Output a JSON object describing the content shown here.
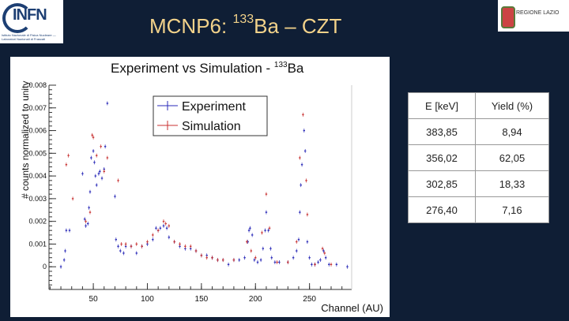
{
  "header": {
    "title_prefix": "MCNP6: ",
    "title_sup": "133",
    "title_suffix": "Ba – CZT",
    "logo_left": "INFN",
    "logo_left_sub": "Istituto Nazionale di Fisica Nucleare — Laboratori Nazionali di Frascati",
    "logo_right": "REGIONE LAZIO"
  },
  "colors": {
    "background": "#0f1e35",
    "title": "#f2d28a",
    "experiment": "#2a2ab8",
    "simulation": "#c83232"
  },
  "table": {
    "headers": [
      "E [keV]",
      "Yield (%)"
    ],
    "rows": [
      [
        "383,85",
        "8,94"
      ],
      [
        "356,02",
        "62,05"
      ],
      [
        "302,85",
        "18,33"
      ],
      [
        "276,40",
        "7,16"
      ]
    ]
  },
  "chart_data": {
    "type": "scatter",
    "title": "Experiment vs Simulation - ",
    "title_sup": "133",
    "title_suffix": "Ba",
    "xlabel": "Channel (AU)",
    "ylabel": "# counts normalized to unity",
    "xlim": [
      9,
      289
    ],
    "ylim": [
      -0.001,
      0.008
    ],
    "xticks": [
      "50",
      "100",
      "150",
      "200",
      "250"
    ],
    "yticks": [
      "0",
      "0.001",
      "0.002",
      "0.003",
      "0.004",
      "0.005",
      "0.006",
      "0.007",
      "0.008"
    ],
    "legend_position": "top-center",
    "grid": false,
    "series": [
      {
        "name": "Experiment",
        "color": "#2a2ab8",
        "points": [
          [
            20,
            0
          ],
          [
            23,
            0.0003
          ],
          [
            24,
            0.0007
          ],
          [
            25,
            0.0016
          ],
          [
            28,
            0.0016
          ],
          [
            40,
            0.0041
          ],
          [
            42,
            0.0021
          ],
          [
            43,
            0.0018
          ],
          [
            45,
            0.0019
          ],
          [
            46,
            0.0026
          ],
          [
            47,
            0.0033
          ],
          [
            48,
            0.0048
          ],
          [
            50,
            0.0051
          ],
          [
            51,
            0.0046
          ],
          [
            52,
            0.004
          ],
          [
            53,
            0.0036
          ],
          [
            55,
            0.0041
          ],
          [
            56,
            0.0042
          ],
          [
            58,
            0.0039
          ],
          [
            60,
            0.0043
          ],
          [
            61,
            0.0053
          ],
          [
            63,
            0.0072
          ],
          [
            70,
            0.0031
          ],
          [
            71,
            0.0012
          ],
          [
            73,
            0.0009
          ],
          [
            75,
            0.0007
          ],
          [
            78,
            0.0006
          ],
          [
            80,
            0.0009
          ],
          [
            85,
            0.0009
          ],
          [
            90,
            0.0006
          ],
          [
            95,
            0.0009
          ],
          [
            100,
            0.001
          ],
          [
            105,
            0.0012
          ],
          [
            108,
            0.0017
          ],
          [
            110,
            0.0016
          ],
          [
            112,
            0.0017
          ],
          [
            115,
            0.0018
          ],
          [
            118,
            0.0017
          ],
          [
            120,
            0.0013
          ],
          [
            125,
            0.0011
          ],
          [
            130,
            0.0009
          ],
          [
            135,
            0.0008
          ],
          [
            140,
            0.0008
          ],
          [
            145,
            0.0007
          ],
          [
            150,
            0.0005
          ],
          [
            155,
            0.0005
          ],
          [
            160,
            0.0004
          ],
          [
            165,
            0.0003
          ],
          [
            170,
            0.0003
          ],
          [
            175,
            0.0001
          ],
          [
            180,
            0.0003
          ],
          [
            185,
            0.0003
          ],
          [
            190,
            0.0004
          ],
          [
            193,
            0.0011
          ],
          [
            194,
            0.0016
          ],
          [
            195,
            0.0017
          ],
          [
            197,
            0.0014
          ],
          [
            199,
            0.0003
          ],
          [
            202,
            0.0002
          ],
          [
            205,
            0.0003
          ],
          [
            207,
            0.0008
          ],
          [
            209,
            0.0016
          ],
          [
            210,
            0.0024
          ],
          [
            212,
            0.0016
          ],
          [
            214,
            0.0008
          ],
          [
            215,
            0.0004
          ],
          [
            218,
            0.0002
          ],
          [
            222,
            0.0002
          ],
          [
            230,
            0.0002
          ],
          [
            235,
            0.0004
          ],
          [
            238,
            0.0007
          ],
          [
            240,
            0.0012
          ],
          [
            241,
            0.0024
          ],
          [
            242,
            0.0036
          ],
          [
            243,
            0.0045
          ],
          [
            245,
            0.006
          ],
          [
            246,
            0.0051
          ],
          [
            248,
            0.0011
          ],
          [
            250,
            0.0004
          ],
          [
            252,
            0.0001
          ],
          [
            255,
            0.0001
          ],
          [
            258,
            0.0002
          ],
          [
            260,
            0.0003
          ],
          [
            263,
            0.0007
          ],
          [
            265,
            0.0004
          ],
          [
            268,
            0.0001
          ],
          [
            275,
            0.0001
          ],
          [
            285,
            0
          ]
        ]
      },
      {
        "name": "Simulation",
        "color": "#c83232",
        "points": [
          [
            25,
            0.0045
          ],
          [
            27,
            0.0049
          ],
          [
            31,
            0.003
          ],
          [
            43,
            0.002
          ],
          [
            47,
            0.0024
          ],
          [
            49,
            0.0058
          ],
          [
            50,
            0.0057
          ],
          [
            53,
            0.0049
          ],
          [
            57,
            0.0053
          ],
          [
            60,
            0.0042
          ],
          [
            63,
            0.0048
          ],
          [
            73,
            0.0038
          ],
          [
            76,
            0.001
          ],
          [
            80,
            0.001
          ],
          [
            85,
            0.0009
          ],
          [
            90,
            0.001
          ],
          [
            95,
            0.0009
          ],
          [
            100,
            0.0011
          ],
          [
            105,
            0.0014
          ],
          [
            110,
            0.0016
          ],
          [
            115,
            0.002
          ],
          [
            117,
            0.0019
          ],
          [
            120,
            0.0018
          ],
          [
            125,
            0.0011
          ],
          [
            130,
            0.001
          ],
          [
            135,
            0.0009
          ],
          [
            140,
            0.0009
          ],
          [
            145,
            0.0007
          ],
          [
            150,
            0.0005
          ],
          [
            155,
            0.0004
          ],
          [
            160,
            0.0004
          ],
          [
            165,
            0.0003
          ],
          [
            170,
            0.0003
          ],
          [
            180,
            0.0003
          ],
          [
            192,
            0.0011
          ],
          [
            196,
            0.0007
          ],
          [
            200,
            0.0004
          ],
          [
            206,
            0.0015
          ],
          [
            210,
            0.0032
          ],
          [
            213,
            0.0017
          ],
          [
            220,
            0.0002
          ],
          [
            230,
            0.0002
          ],
          [
            238,
            0.0011
          ],
          [
            241,
            0.0048
          ],
          [
            244,
            0.0067
          ],
          [
            247,
            0.0038
          ],
          [
            248,
            0.0023
          ],
          [
            255,
            0.0001
          ],
          [
            262,
            0.0008
          ],
          [
            264,
            0.0006
          ],
          [
            270,
            0.0001
          ]
        ]
      }
    ]
  }
}
